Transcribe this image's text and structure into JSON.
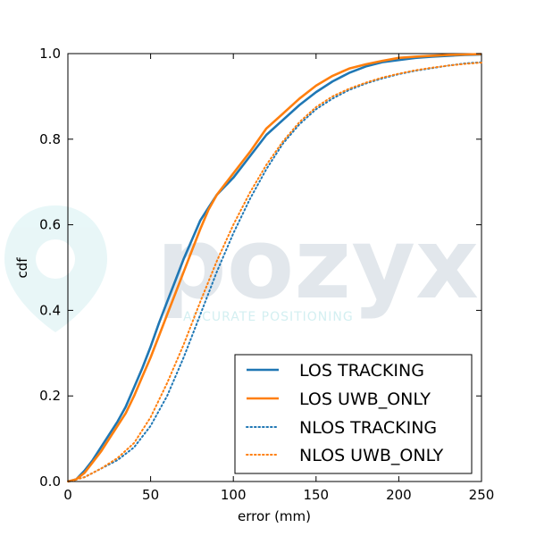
{
  "watermark": {
    "brand": "pozyx",
    "tagline": "ACCURATE POSITIONING"
  },
  "chart_data": {
    "type": "line",
    "xlabel": "error (mm)",
    "ylabel": "cdf",
    "xlim": [
      0,
      250
    ],
    "ylim": [
      0,
      1.0
    ],
    "xticks": [
      0,
      50,
      100,
      150,
      200,
      250
    ],
    "yticks": [
      0.0,
      0.2,
      0.4,
      0.6,
      0.8,
      1.0
    ],
    "xtick_labels": [
      "0",
      "50",
      "100",
      "150",
      "200",
      "250"
    ],
    "ytick_labels": [
      "0.0",
      "0.2",
      "0.4",
      "0.6",
      "0.8",
      "1.0"
    ],
    "grid": false,
    "legend_position": "lower-right",
    "series": [
      {
        "name": "LOS TRACKING",
        "color": "#1f77b4",
        "style": "solid",
        "x": [
          0,
          5,
          10,
          15,
          20,
          25,
          30,
          35,
          40,
          45,
          50,
          55,
          60,
          65,
          70,
          75,
          80,
          85,
          90,
          95,
          100,
          110,
          120,
          130,
          140,
          150,
          160,
          170,
          180,
          190,
          200,
          210,
          220,
          230,
          240,
          250
        ],
        "y": [
          0.0,
          0.005,
          0.025,
          0.05,
          0.08,
          0.11,
          0.14,
          0.175,
          0.22,
          0.265,
          0.315,
          0.37,
          0.42,
          0.47,
          0.52,
          0.565,
          0.61,
          0.64,
          0.67,
          0.69,
          0.71,
          0.76,
          0.81,
          0.845,
          0.88,
          0.91,
          0.935,
          0.955,
          0.97,
          0.98,
          0.985,
          0.99,
          0.993,
          0.995,
          0.997,
          0.998
        ]
      },
      {
        "name": "LOS UWB_ONLY",
        "color": "#ff7f0e",
        "style": "solid",
        "x": [
          0,
          5,
          10,
          15,
          20,
          25,
          30,
          35,
          40,
          45,
          50,
          55,
          60,
          65,
          70,
          75,
          80,
          85,
          90,
          95,
          100,
          110,
          120,
          130,
          140,
          150,
          160,
          170,
          180,
          190,
          200,
          210,
          220,
          230,
          240,
          250
        ],
        "y": [
          0.0,
          0.005,
          0.02,
          0.045,
          0.07,
          0.1,
          0.13,
          0.16,
          0.2,
          0.245,
          0.29,
          0.34,
          0.39,
          0.44,
          0.49,
          0.54,
          0.59,
          0.635,
          0.67,
          0.695,
          0.72,
          0.77,
          0.825,
          0.86,
          0.895,
          0.925,
          0.948,
          0.965,
          0.975,
          0.983,
          0.99,
          0.993,
          0.995,
          0.997,
          0.998,
          0.999
        ]
      },
      {
        "name": "NLOS TRACKING",
        "color": "#1f77b4",
        "style": "dotted",
        "x": [
          0,
          10,
          20,
          30,
          40,
          50,
          60,
          70,
          80,
          90,
          100,
          110,
          120,
          130,
          140,
          150,
          160,
          170,
          180,
          190,
          200,
          210,
          220,
          230,
          240,
          250
        ],
        "y": [
          0.0,
          0.01,
          0.03,
          0.05,
          0.08,
          0.13,
          0.2,
          0.29,
          0.39,
          0.49,
          0.58,
          0.66,
          0.73,
          0.79,
          0.835,
          0.87,
          0.895,
          0.915,
          0.93,
          0.942,
          0.952,
          0.96,
          0.966,
          0.972,
          0.977,
          0.98
        ]
      },
      {
        "name": "NLOS UWB_ONLY",
        "color": "#ff7f0e",
        "style": "dotted",
        "x": [
          0,
          10,
          20,
          30,
          40,
          50,
          60,
          70,
          80,
          90,
          100,
          110,
          120,
          130,
          140,
          150,
          160,
          170,
          180,
          190,
          200,
          210,
          220,
          230,
          240,
          250
        ],
        "y": [
          0.0,
          0.01,
          0.03,
          0.055,
          0.09,
          0.15,
          0.23,
          0.32,
          0.42,
          0.515,
          0.6,
          0.675,
          0.74,
          0.795,
          0.84,
          0.875,
          0.9,
          0.918,
          0.932,
          0.944,
          0.953,
          0.961,
          0.967,
          0.972,
          0.976,
          0.979
        ]
      }
    ]
  }
}
